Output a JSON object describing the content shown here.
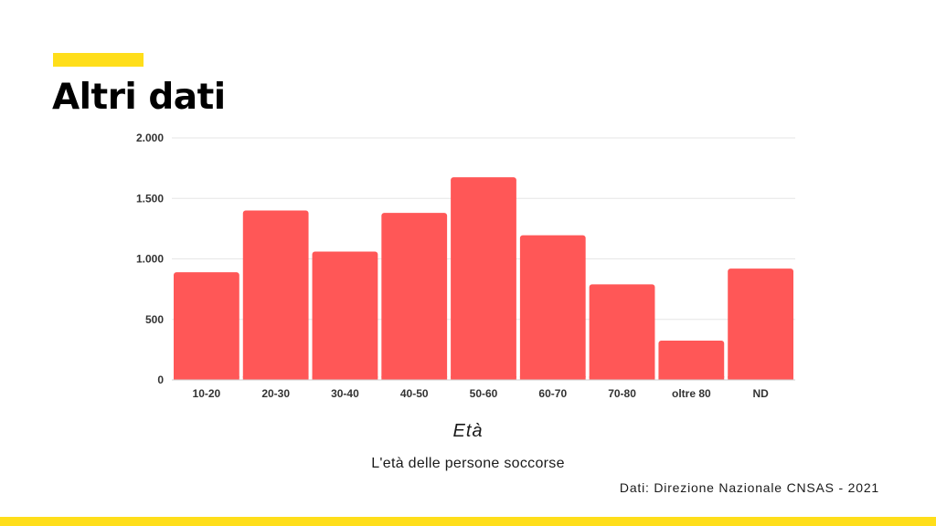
{
  "page": {
    "title": "Altri dati",
    "source": "Dati: Direzione Nazionale CNSAS - 2021",
    "accent_color": "#ffde1a"
  },
  "chart_data": {
    "type": "bar",
    "title": "",
    "xlabel": "Età",
    "ylabel": "",
    "caption": "L'età delle persone soccorse",
    "categories": [
      "10-20",
      "20-30",
      "30-40",
      "40-50",
      "50-60",
      "60-70",
      "70-80",
      "oltre 80",
      "ND"
    ],
    "values": [
      890,
      1400,
      1060,
      1380,
      1675,
      1195,
      790,
      325,
      920
    ],
    "ylim": [
      0,
      2000
    ],
    "yticks": [
      0,
      500,
      1000,
      1500,
      2000
    ],
    "ytick_labels": [
      "0",
      "500",
      "1.000",
      "1.500",
      "2.000"
    ],
    "grid": true,
    "legend": "none",
    "bar_color": "#ff5757"
  }
}
